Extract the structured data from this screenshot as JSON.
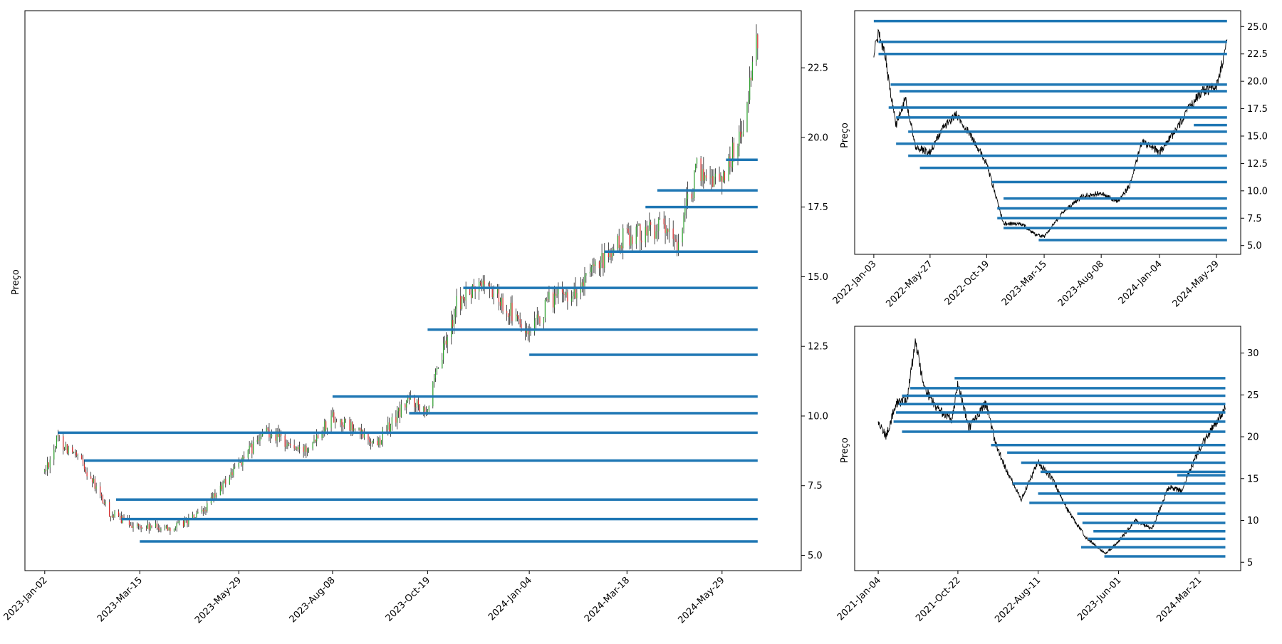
{
  "chart_data": [
    {
      "type": "candlestick",
      "ylabel": "Preço",
      "y_ticks": [
        5.0,
        7.5,
        10.0,
        12.5,
        15.0,
        17.5,
        20.0,
        22.5
      ],
      "x_ticks": [
        "2023-Jan-02",
        "2023-Mar-15",
        "2023-May-29",
        "2023-Aug-08",
        "2023-Oct-19",
        "2024-Jan-04",
        "2024-Mar-18",
        "2024-May-29"
      ],
      "price_path": [
        {
          "x": "2023-Jan-02",
          "y": 8.0
        },
        {
          "x": "2023-Jan-12",
          "y": 9.2
        },
        {
          "x": "2023-Feb-01",
          "y": 8.2
        },
        {
          "x": "2023-Feb-20",
          "y": 6.5
        },
        {
          "x": "2023-Mar-15",
          "y": 6.0
        },
        {
          "x": "2023-Apr-10",
          "y": 6.0
        },
        {
          "x": "2023-May-01",
          "y": 6.5
        },
        {
          "x": "2023-May-29",
          "y": 8.3
        },
        {
          "x": "2023-Jun-20",
          "y": 9.5
        },
        {
          "x": "2023-Jul-15",
          "y": 8.7
        },
        {
          "x": "2023-Aug-08",
          "y": 10.0
        },
        {
          "x": "2023-Sep-10",
          "y": 9.0
        },
        {
          "x": "2023-Oct-05",
          "y": 10.6
        },
        {
          "x": "2023-Oct-19",
          "y": 10.3
        },
        {
          "x": "2023-Nov-10",
          "y": 14.0
        },
        {
          "x": "2023-Dec-01",
          "y": 14.8
        },
        {
          "x": "2023-Dec-20",
          "y": 13.8
        },
        {
          "x": "2024-Jan-04",
          "y": 12.8
        },
        {
          "x": "2024-Jan-20",
          "y": 14.2
        },
        {
          "x": "2024-Feb-10",
          "y": 14.5
        },
        {
          "x": "2024-Mar-18",
          "y": 16.5
        },
        {
          "x": "2024-Apr-10",
          "y": 16.8
        },
        {
          "x": "2024-Apr-25",
          "y": 16.2
        },
        {
          "x": "2024-May-10",
          "y": 18.8
        },
        {
          "x": "2024-May-29",
          "y": 18.5
        },
        {
          "x": "2024-Jun-15",
          "y": 20.5
        },
        {
          "x": "2024-Jun-25",
          "y": 23.5
        }
      ],
      "levels": [
        {
          "start": "2023-Jan-12",
          "value": 9.4
        },
        {
          "start": "2023-Feb-01",
          "value": 8.4
        },
        {
          "start": "2023-Feb-25",
          "value": 7.0
        },
        {
          "start": "2023-Mar-01",
          "value": 6.3
        },
        {
          "start": "2023-Mar-15",
          "value": 5.5
        },
        {
          "start": "2023-Aug-08",
          "value": 10.7
        },
        {
          "start": "2023-Oct-05",
          "value": 10.1
        },
        {
          "start": "2023-Oct-19",
          "value": 13.1
        },
        {
          "start": "2023-Nov-15",
          "value": 14.6
        },
        {
          "start": "2024-Jan-04",
          "value": 12.2
        },
        {
          "start": "2024-Mar-01",
          "value": 15.9
        },
        {
          "start": "2024-Apr-01",
          "value": 17.5
        },
        {
          "start": "2024-Apr-10",
          "value": 18.1
        },
        {
          "start": "2024-Jun-01",
          "value": 19.2
        }
      ]
    },
    {
      "type": "line",
      "ylabel": "Preço",
      "y_ticks": [
        5.0,
        7.5,
        10.0,
        12.5,
        15.0,
        17.5,
        20.0,
        22.5,
        25.0
      ],
      "x_ticks": [
        "2022-Jan-03",
        "2022-May-27",
        "2022-Oct-19",
        "2023-Mar-15",
        "2023-Aug-08",
        "2024-Jan-04",
        "2024-May-29"
      ],
      "price_path": [
        {
          "x": "2022-Jan-03",
          "y": 22.5
        },
        {
          "x": "2022-Jan-15",
          "y": 24.5
        },
        {
          "x": "2022-Feb-01",
          "y": 22.5
        },
        {
          "x": "2022-Feb-10",
          "y": 20.0
        },
        {
          "x": "2022-Mar-01",
          "y": 16.0
        },
        {
          "x": "2022-Mar-25",
          "y": 18.5
        },
        {
          "x": "2022-Apr-20",
          "y": 14.0
        },
        {
          "x": "2022-May-27",
          "y": 13.5
        },
        {
          "x": "2022-Jun-25",
          "y": 15.5
        },
        {
          "x": "2022-Aug-01",
          "y": 17.0
        },
        {
          "x": "2022-Sep-01",
          "y": 15.5
        },
        {
          "x": "2022-Oct-19",
          "y": 12.5
        },
        {
          "x": "2022-Dec-01",
          "y": 7.0
        },
        {
          "x": "2023-Jan-15",
          "y": 7.0
        },
        {
          "x": "2023-Feb-20",
          "y": 6.0
        },
        {
          "x": "2023-Mar-15",
          "y": 5.8
        },
        {
          "x": "2023-May-01",
          "y": 8.0
        },
        {
          "x": "2023-Jun-20",
          "y": 9.5
        },
        {
          "x": "2023-Aug-08",
          "y": 9.8
        },
        {
          "x": "2023-Sep-20",
          "y": 9.0
        },
        {
          "x": "2023-Oct-20",
          "y": 10.5
        },
        {
          "x": "2023-Nov-20",
          "y": 14.5
        },
        {
          "x": "2024-Jan-04",
          "y": 13.5
        },
        {
          "x": "2024-Feb-15",
          "y": 15.5
        },
        {
          "x": "2024-Mar-18",
          "y": 17.5
        },
        {
          "x": "2024-Apr-20",
          "y": 19.0
        },
        {
          "x": "2024-May-29",
          "y": 19.5
        },
        {
          "x": "2024-Jun-25",
          "y": 23.5
        }
      ],
      "levels": [
        {
          "start": "2022-Jan-03",
          "value": 25.5
        },
        {
          "start": "2022-Jan-15",
          "value": 23.6
        },
        {
          "start": "2022-Jan-15",
          "value": 22.5
        },
        {
          "start": "2022-Feb-15",
          "value": 19.7
        },
        {
          "start": "2022-Mar-10",
          "value": 19.1
        },
        {
          "start": "2022-Feb-10",
          "value": 17.6
        },
        {
          "start": "2022-Mar-01",
          "value": 16.7
        },
        {
          "start": "2022-Apr-01",
          "value": 15.4
        },
        {
          "start": "2022-Mar-01",
          "value": 14.3
        },
        {
          "start": "2022-Apr-01",
          "value": 13.2
        },
        {
          "start": "2022-May-01",
          "value": 12.1
        },
        {
          "start": "2022-Nov-01",
          "value": 10.8
        },
        {
          "start": "2022-Dec-01",
          "value": 9.3
        },
        {
          "start": "2022-Nov-15",
          "value": 8.4
        },
        {
          "start": "2022-Nov-15",
          "value": 7.5
        },
        {
          "start": "2022-Dec-01",
          "value": 6.6
        },
        {
          "start": "2023-Mar-01",
          "value": 5.5
        },
        {
          "start": "2024-Apr-01",
          "value": 16.0
        }
      ]
    },
    {
      "type": "line",
      "ylabel": "Preço",
      "y_ticks": [
        5,
        10,
        15,
        20,
        25,
        30
      ],
      "x_ticks": [
        "2021-Jan-04",
        "2021-Oct-22",
        "2022-Aug-11",
        "2023-Jun-01",
        "2024-Mar-21"
      ],
      "price_path": [
        {
          "x": "2021-Jan-04",
          "y": 22.0
        },
        {
          "x": "2021-Feb-01",
          "y": 20.0
        },
        {
          "x": "2021-Mar-10",
          "y": 24.0
        },
        {
          "x": "2021-Apr-20",
          "y": 24.5
        },
        {
          "x": "2021-May-20",
          "y": 31.5
        },
        {
          "x": "2021-Jun-20",
          "y": 26.0
        },
        {
          "x": "2021-Aug-01",
          "y": 23.5
        },
        {
          "x": "2021-Oct-01",
          "y": 22.0
        },
        {
          "x": "2021-Oct-22",
          "y": 26.5
        },
        {
          "x": "2021-Dec-01",
          "y": 21.0
        },
        {
          "x": "2022-Feb-01",
          "y": 24.0
        },
        {
          "x": "2022-Mar-10",
          "y": 19.0
        },
        {
          "x": "2022-May-01",
          "y": 15.0
        },
        {
          "x": "2022-Jun-10",
          "y": 12.5
        },
        {
          "x": "2022-Aug-11",
          "y": 17.0
        },
        {
          "x": "2022-Oct-01",
          "y": 15.0
        },
        {
          "x": "2022-Dec-01",
          "y": 11.0
        },
        {
          "x": "2023-Feb-01",
          "y": 8.0
        },
        {
          "x": "2023-Apr-15",
          "y": 6.0
        },
        {
          "x": "2023-Jun-01",
          "y": 7.5
        },
        {
          "x": "2023-Aug-01",
          "y": 10.0
        },
        {
          "x": "2023-Oct-01",
          "y": 9.0
        },
        {
          "x": "2023-Dec-01",
          "y": 14.0
        },
        {
          "x": "2024-Jan-15",
          "y": 13.5
        },
        {
          "x": "2024-Mar-21",
          "y": 18.5
        },
        {
          "x": "2024-Jun-25",
          "y": 23.5
        }
      ],
      "levels": [
        {
          "start": "2021-Oct-10",
          "value": 27.0
        },
        {
          "start": "2021-May-01",
          "value": 25.8
        },
        {
          "start": "2021-Apr-01",
          "value": 24.9
        },
        {
          "start": "2021-Mar-20",
          "value": 23.9
        },
        {
          "start": "2021-Mar-10",
          "value": 22.9
        },
        {
          "start": "2021-Mar-01",
          "value": 21.8
        },
        {
          "start": "2021-Apr-01",
          "value": 20.6
        },
        {
          "start": "2022-Feb-20",
          "value": 19.0
        },
        {
          "start": "2022-Apr-20",
          "value": 18.1
        },
        {
          "start": "2022-Jun-10",
          "value": 16.9
        },
        {
          "start": "2022-Aug-20",
          "value": 15.8
        },
        {
          "start": "2022-May-10",
          "value": 14.4
        },
        {
          "start": "2022-Aug-11",
          "value": 13.2
        },
        {
          "start": "2022-Jul-10",
          "value": 12.1
        },
        {
          "start": "2023-Jan-01",
          "value": 10.8
        },
        {
          "start": "2023-Jan-20",
          "value": 9.7
        },
        {
          "start": "2023-Mar-01",
          "value": 8.7
        },
        {
          "start": "2023-Feb-10",
          "value": 7.8
        },
        {
          "start": "2023-Jan-15",
          "value": 6.8
        },
        {
          "start": "2023-Apr-10",
          "value": 5.7
        },
        {
          "start": "2024-Jan-01",
          "value": 15.4
        }
      ]
    }
  ]
}
